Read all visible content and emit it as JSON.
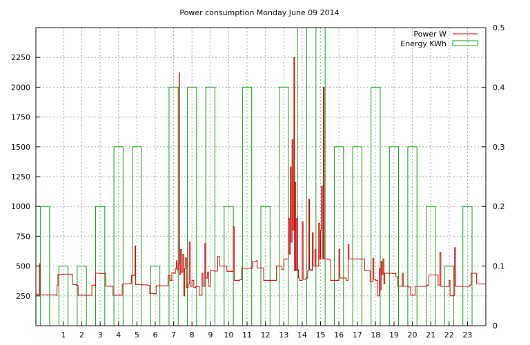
{
  "chart_data": {
    "type": "line",
    "title": "Power consumption Monday June 09 2014",
    "grid": true,
    "legend_position": "top-right",
    "x": {
      "range": [
        -0.5,
        24
      ],
      "ticks": [
        1,
        2,
        3,
        4,
        5,
        6,
        7,
        8,
        9,
        10,
        11,
        12,
        13,
        14,
        15,
        16,
        17,
        18,
        19,
        20,
        21,
        22,
        23
      ],
      "tick_labels": [
        "1",
        "2",
        "3",
        "4",
        "5",
        "6",
        "7",
        "8",
        "9",
        "10",
        "11",
        "12",
        "13",
        "14",
        "15",
        "16",
        "17",
        "18",
        "19",
        "20",
        "21",
        "22",
        "23"
      ]
    },
    "y": {
      "range": [
        0,
        2500
      ],
      "ticks": [
        250,
        500,
        750,
        1000,
        1250,
        1500,
        1750,
        2000,
        2250
      ],
      "tick_labels": [
        "250",
        "500",
        "750",
        "1000",
        "1250",
        "1500",
        "1750",
        "2000",
        "2250"
      ]
    },
    "y2": {
      "range": [
        0,
        0.5
      ],
      "ticks": [
        0,
        0.1,
        0.2,
        0.3,
        0.4,
        0.5
      ],
      "tick_labels": [
        "0",
        "0.1",
        "0.2",
        "0.3",
        "0.4",
        "0.5"
      ]
    },
    "series": [
      {
        "name": "Power W",
        "color": "#cc0000",
        "points": [
          [
            -0.5,
            265
          ],
          [
            -0.4,
            260
          ],
          [
            -0.3,
            520
          ],
          [
            -0.28,
            258
          ],
          [
            0,
            258
          ],
          [
            0.6,
            255
          ],
          [
            0.65,
            340
          ],
          [
            0.7,
            430
          ],
          [
            1.0,
            432
          ],
          [
            1.4,
            430
          ],
          [
            1.5,
            345
          ],
          [
            1.7,
            340
          ],
          [
            1.8,
            255
          ],
          [
            2.5,
            255
          ],
          [
            2.55,
            340
          ],
          [
            2.7,
            335
          ],
          [
            2.75,
            440
          ],
          [
            3.0,
            438
          ],
          [
            3.2,
            440
          ],
          [
            3.3,
            330
          ],
          [
            3.6,
            330
          ],
          [
            3.7,
            255
          ],
          [
            4.1,
            255
          ],
          [
            4.2,
            350
          ],
          [
            4.6,
            352
          ],
          [
            4.7,
            420
          ],
          [
            4.85,
            425
          ],
          [
            4.9,
            670
          ],
          [
            4.93,
            345
          ],
          [
            5.3,
            342
          ],
          [
            5.6,
            338
          ],
          [
            5.7,
            270
          ],
          [
            6.0,
            265
          ],
          [
            6.05,
            335
          ],
          [
            6.6,
            335
          ],
          [
            6.7,
            420
          ],
          [
            6.8,
            380
          ],
          [
            6.9,
            445
          ],
          [
            7.0,
            440
          ],
          [
            7.1,
            480
          ],
          [
            7.15,
            545
          ],
          [
            7.18,
            470
          ],
          [
            7.25,
            520
          ],
          [
            7.3,
            2120
          ],
          [
            7.32,
            430
          ],
          [
            7.38,
            640
          ],
          [
            7.42,
            450
          ],
          [
            7.5,
            600
          ],
          [
            7.55,
            250
          ],
          [
            7.6,
            480
          ],
          [
            7.65,
            570
          ],
          [
            7.7,
            320
          ],
          [
            7.8,
            350
          ],
          [
            7.85,
            700
          ],
          [
            7.9,
            330
          ],
          [
            8.0,
            380
          ],
          [
            8.1,
            320
          ],
          [
            8.2,
            330
          ],
          [
            8.4,
            255
          ],
          [
            8.5,
            260
          ],
          [
            8.55,
            440
          ],
          [
            8.6,
            330
          ],
          [
            8.7,
            690
          ],
          [
            8.75,
            400
          ],
          [
            8.85,
            450
          ],
          [
            8.9,
            330
          ],
          [
            9.0,
            460
          ],
          [
            9.2,
            458
          ],
          [
            9.4,
            580
          ],
          [
            9.5,
            500
          ],
          [
            9.8,
            500
          ],
          [
            9.9,
            455
          ],
          [
            10.2,
            455
          ],
          [
            10.25,
            830
          ],
          [
            10.3,
            380
          ],
          [
            10.6,
            385
          ],
          [
            10.7,
            480
          ],
          [
            11.2,
            485
          ],
          [
            11.3,
            540
          ],
          [
            11.5,
            545
          ],
          [
            11.55,
            485
          ],
          [
            11.8,
            485
          ],
          [
            11.9,
            380
          ],
          [
            12.5,
            380
          ],
          [
            12.6,
            500
          ],
          [
            12.85,
            500
          ],
          [
            12.9,
            470
          ],
          [
            13.0,
            560
          ],
          [
            13.2,
            560
          ],
          [
            13.25,
            900
          ],
          [
            13.3,
            600
          ],
          [
            13.35,
            1330
          ],
          [
            13.4,
            700
          ],
          [
            13.45,
            1560
          ],
          [
            13.5,
            800
          ],
          [
            13.55,
            2250
          ],
          [
            13.58,
            460
          ],
          [
            13.6,
            1200
          ],
          [
            13.65,
            460
          ],
          [
            13.7,
            900
          ],
          [
            13.75,
            470
          ],
          [
            13.8,
            400
          ],
          [
            13.85,
            380
          ],
          [
            13.9,
            380
          ],
          [
            14.0,
            870
          ],
          [
            14.05,
            390
          ],
          [
            14.2,
            400
          ],
          [
            14.3,
            460
          ],
          [
            14.35,
            1060
          ],
          [
            14.4,
            470
          ],
          [
            14.5,
            460
          ],
          [
            14.55,
            780
          ],
          [
            14.6,
            500
          ],
          [
            14.7,
            640
          ],
          [
            14.75,
            500
          ],
          [
            14.9,
            860
          ],
          [
            14.95,
            560
          ],
          [
            15.0,
            800
          ],
          [
            15.05,
            1170
          ],
          [
            15.1,
            560
          ],
          [
            15.15,
            2000
          ],
          [
            15.2,
            560
          ],
          [
            15.4,
            555
          ],
          [
            15.5,
            550
          ],
          [
            15.55,
            380
          ],
          [
            15.9,
            380
          ],
          [
            16.0,
            640
          ],
          [
            16.05,
            400
          ],
          [
            16.3,
            400
          ],
          [
            16.4,
            380
          ],
          [
            16.5,
            680
          ],
          [
            16.55,
            560
          ],
          [
            17.3,
            560
          ],
          [
            17.4,
            460
          ],
          [
            17.6,
            460
          ],
          [
            17.7,
            370
          ],
          [
            17.85,
            565
          ],
          [
            17.9,
            390
          ],
          [
            18.0,
            380
          ],
          [
            18.1,
            250
          ],
          [
            18.2,
            480
          ],
          [
            18.25,
            300
          ],
          [
            18.3,
            540
          ],
          [
            18.35,
            430
          ],
          [
            18.4,
            560
          ],
          [
            18.45,
            350
          ],
          [
            18.5,
            440
          ],
          [
            18.9,
            438
          ],
          [
            19.1,
            410
          ],
          [
            19.2,
            330
          ],
          [
            19.45,
            440
          ],
          [
            19.5,
            330
          ],
          [
            19.8,
            325
          ],
          [
            19.9,
            255
          ],
          [
            20.1,
            255
          ],
          [
            20.15,
            330
          ],
          [
            20.7,
            330
          ],
          [
            20.8,
            340
          ],
          [
            20.9,
            425
          ],
          [
            21.3,
            425
          ],
          [
            21.4,
            340
          ],
          [
            21.5,
            615
          ],
          [
            21.55,
            330
          ],
          [
            21.9,
            330
          ],
          [
            22.0,
            380
          ],
          [
            22.05,
            250
          ],
          [
            22.2,
            255
          ],
          [
            22.3,
            655
          ],
          [
            22.35,
            330
          ],
          [
            23.0,
            330
          ],
          [
            23.1,
            340
          ],
          [
            23.2,
            440
          ],
          [
            23.4,
            440
          ],
          [
            23.5,
            350
          ],
          [
            24.0,
            348
          ]
        ]
      },
      {
        "name": "Energy KWh",
        "color": "#00a000",
        "bars": [
          {
            "x": 0,
            "value": 0.2
          },
          {
            "x": 1,
            "value": 0.1
          },
          {
            "x": 2,
            "value": 0.1
          },
          {
            "x": 3,
            "value": 0.2
          },
          {
            "x": 4,
            "value": 0.3
          },
          {
            "x": 5,
            "value": 0.3
          },
          {
            "x": 6,
            "value": 0.1
          },
          {
            "x": 7,
            "value": 0.4
          },
          {
            "x": 8,
            "value": 0.4
          },
          {
            "x": 9,
            "value": 0.4
          },
          {
            "x": 10,
            "value": 0.2
          },
          {
            "x": 11,
            "value": 0.4
          },
          {
            "x": 12,
            "value": 0.2
          },
          {
            "x": 13,
            "value": 0.4
          },
          {
            "x": 14,
            "value": 0.5
          },
          {
            "x": 15,
            "value": 0.5
          },
          {
            "x": 16,
            "value": 0.3
          },
          {
            "x": 17,
            "value": 0.3
          },
          {
            "x": 18,
            "value": 0.4
          },
          {
            "x": 19,
            "value": 0.3
          },
          {
            "x": 20,
            "value": 0.3
          },
          {
            "x": 21,
            "value": 0.2
          },
          {
            "x": 22,
            "value": 0.1
          },
          {
            "x": 23,
            "value": 0.2
          }
        ]
      }
    ]
  }
}
